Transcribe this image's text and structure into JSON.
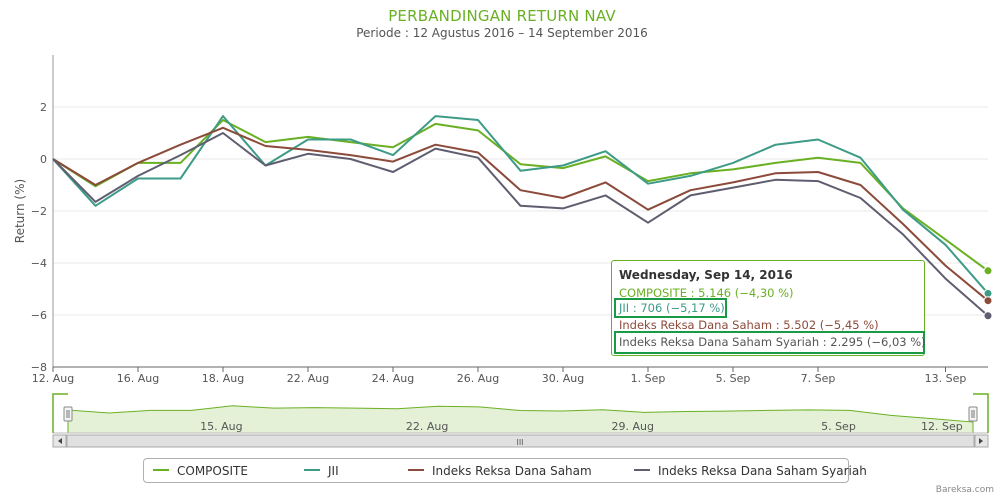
{
  "chart_data": {
    "type": "line",
    "title": "PERBANDINGAN RETURN NAV",
    "subtitle": "Periode : 12 Agustus 2016 – 14 September 2016",
    "ylabel": "Return (%)",
    "xlabel": "",
    "ylim": [
      -8,
      4
    ],
    "yticks": [
      "2",
      "0",
      "−2",
      "−4",
      "−6",
      "−8"
    ],
    "x_tick_labels": [
      "12. Aug",
      "16. Aug",
      "18. Aug",
      "22. Aug",
      "24. Aug",
      "26. Aug",
      "30. Aug",
      "1. Sep",
      "5. Sep",
      "7. Sep",
      "13. Sep"
    ],
    "x_tick_positions": [
      0,
      2,
      4,
      6,
      8,
      10,
      12,
      14,
      16,
      18,
      21
    ],
    "x": [
      0,
      1,
      2,
      3,
      4,
      5,
      6,
      7,
      8,
      9,
      10,
      11,
      12,
      13,
      14,
      15,
      16,
      17,
      18,
      19,
      20,
      21,
      22
    ],
    "series": [
      {
        "name": "COMPOSITE",
        "color": "#6ab023",
        "values": [
          0,
          -1.05,
          -0.15,
          -0.15,
          1.5,
          0.65,
          0.85,
          0.65,
          0.45,
          1.35,
          1.1,
          -0.2,
          -0.35,
          0.1,
          -0.85,
          -0.55,
          -0.4,
          -0.15,
          0.05,
          -0.15,
          -1.9,
          -3.1,
          -4.3
        ]
      },
      {
        "name": "JII",
        "color": "#3d9b87",
        "values": [
          0,
          -1.8,
          -0.75,
          -0.75,
          1.65,
          -0.25,
          0.75,
          0.75,
          0.15,
          1.65,
          1.5,
          -0.45,
          -0.25,
          0.3,
          -0.95,
          -0.65,
          -0.15,
          0.55,
          0.75,
          0.05,
          -1.95,
          -3.3,
          -5.17
        ]
      },
      {
        "name": "Indeks Reksa Dana Saham",
        "color": "#8b4a3a",
        "values": [
          0,
          -1.0,
          -0.15,
          0.55,
          1.2,
          0.5,
          0.35,
          0.15,
          -0.1,
          0.55,
          0.25,
          -1.2,
          -1.5,
          -0.9,
          -1.95,
          -1.2,
          -0.9,
          -0.55,
          -0.5,
          -1.0,
          -2.5,
          -4.1,
          -5.45
        ]
      },
      {
        "name": "Indeks Reksa Dana Saham Syariah",
        "color": "#5e5e70",
        "values": [
          0,
          -1.65,
          -0.65,
          0.15,
          1.0,
          -0.25,
          0.2,
          0.0,
          -0.5,
          0.4,
          0.05,
          -1.8,
          -1.9,
          -1.4,
          -2.45,
          -1.4,
          -1.1,
          -0.8,
          -0.85,
          -1.5,
          -2.9,
          -4.6,
          -6.03
        ]
      }
    ]
  },
  "tooltip": {
    "date": "Wednesday, Sep 14, 2016",
    "composite": "COMPOSITE : 5.146 (−4,30 %)",
    "jii": "JII : 706 (−5,17 %)",
    "saham": "Indeks Reksa Dana Saham : 5.502 (−5,45 %)",
    "syariah": "Indeks Reksa Dana Saham Syariah : 2.295 (−6,03 %)"
  },
  "navigator": {
    "labels": [
      "15. Aug",
      "22. Aug",
      "29. Aug",
      "5. Sep",
      "12. Sep"
    ],
    "scrollbar_grip": "III"
  },
  "legend": [
    "COMPOSITE",
    "JII",
    "Indeks Reksa Dana Saham",
    "Indeks Reksa Dana Saham Syariah"
  ],
  "colors": {
    "composite": "#6ab023",
    "jii": "#3d9b87",
    "saham": "#8b4a3a",
    "syariah": "#5e5e70",
    "highlight": "#1a9a46"
  },
  "credit": "Bareksa.com"
}
